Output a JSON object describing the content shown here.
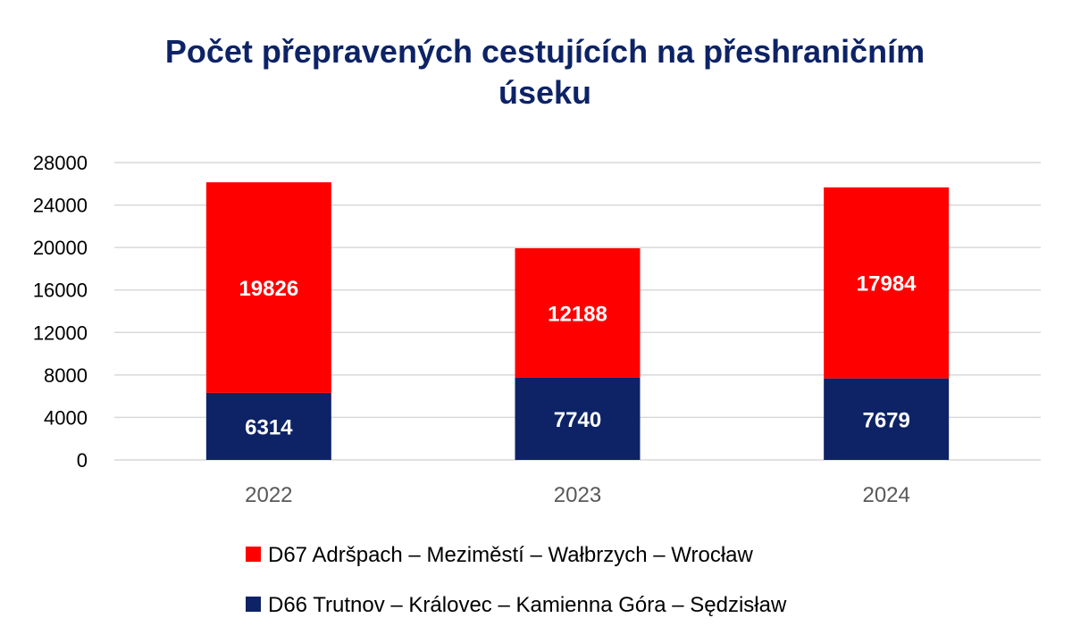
{
  "colors": {
    "title": "#0d2366",
    "axis_text": "#595959",
    "tick_text": "#000000",
    "gridline": "#d9d9d9",
    "label_text": "#ffffff"
  },
  "chart_data": {
    "type": "bar",
    "stacked": true,
    "title_lines": [
      "Počet přepravených cestujících na přeshraničním",
      "úseku"
    ],
    "categories": [
      "2022",
      "2023",
      "2024"
    ],
    "ylim": [
      0,
      28000
    ],
    "yticks": [
      0,
      4000,
      8000,
      12000,
      16000,
      20000,
      24000,
      28000
    ],
    "grid": true,
    "legend_position": "bottom",
    "series": [
      {
        "name": "D66 Trutnov – Královec – Kamienna Góra – Sędzisław",
        "color": "#0d2366",
        "values": [
          6314,
          7740,
          7679
        ]
      },
      {
        "name": "D67 Adršpach – Meziměstí – Wałbrzych – Wrocław",
        "color": "#ff0000",
        "values": [
          19826,
          12188,
          17984
        ]
      }
    ],
    "legend_order": [
      1,
      0
    ]
  }
}
